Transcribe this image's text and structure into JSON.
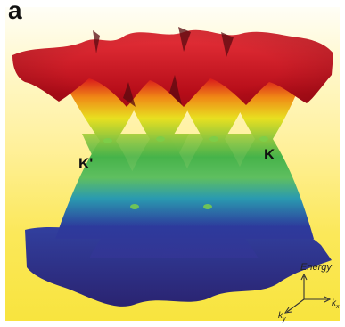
{
  "panel": {
    "label": "a"
  },
  "points": {
    "k_prime": "K'",
    "k": "K"
  },
  "axes": {
    "energy": "Energy",
    "kx": "k",
    "kx_sub": "x",
    "ky": "k",
    "ky_sub": "y"
  },
  "colors": {
    "background_top": "#fffef6",
    "background_bottom": "#f8e43e",
    "band_red": "#d8101b",
    "band_orange": "#f08a16",
    "band_yellow": "#e8e020",
    "band_green": "#46b34a",
    "band_teal": "#2a9ab0",
    "band_blue": "#2d3a9c",
    "band_violet": "#3b2f8a"
  }
}
